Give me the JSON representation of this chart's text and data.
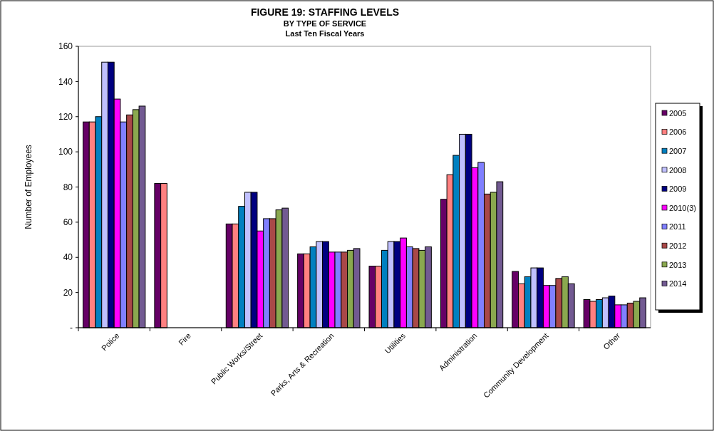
{
  "chart_data": {
    "type": "bar",
    "title": "FIGURE 19: STAFFING LEVELS",
    "subtitle": "BY TYPE OF SERVICE\nLast Ten Fiscal Years",
    "ylabel": "Number of Employees",
    "categories": [
      "Police",
      "Fire",
      "Public Works/Street",
      "Parks, Arts & Recreation",
      "Utilities",
      "Administration",
      "Community Development",
      "Other"
    ],
    "ylim": [
      0,
      160
    ],
    "yticks": [
      {
        "value": 0,
        "label": "-"
      },
      20,
      40,
      60,
      80,
      100,
      120,
      140,
      160
    ],
    "grid": false,
    "legend": "right",
    "series": [
      {
        "name": "2005",
        "color": "#660066",
        "values": [
          117,
          82,
          59,
          42,
          35,
          73,
          32,
          16
        ]
      },
      {
        "name": "2006",
        "color": "#ff8080",
        "values": [
          117,
          82,
          59,
          42,
          35,
          87,
          25,
          15
        ]
      },
      {
        "name": "2007",
        "color": "#0080c0",
        "values": [
          120,
          null,
          69,
          46,
          44,
          98,
          29,
          16
        ]
      },
      {
        "name": "2008",
        "color": "#c0c0ff",
        "values": [
          151,
          null,
          77,
          49,
          49,
          110,
          34,
          17
        ]
      },
      {
        "name": "2009",
        "color": "#000080",
        "values": [
          151,
          null,
          77,
          49,
          49,
          110,
          34,
          18
        ]
      },
      {
        "name": "2010(3)",
        "color": "#ff00ff",
        "values": [
          130,
          null,
          55,
          43,
          51,
          91,
          24,
          13
        ]
      },
      {
        "name": "2011",
        "color": "#8080ff",
        "values": [
          117,
          null,
          62,
          43,
          46,
          94,
          24,
          13
        ]
      },
      {
        "name": "2012",
        "color": "#a94848",
        "values": [
          121,
          null,
          62,
          43,
          45,
          76,
          28,
          14
        ]
      },
      {
        "name": "2013",
        "color": "#8aa84f",
        "values": [
          124,
          null,
          67,
          44,
          44,
          77,
          29,
          15
        ]
      },
      {
        "name": "2014",
        "color": "#725a92",
        "values": [
          126,
          null,
          68,
          45,
          46,
          83,
          25,
          17
        ]
      }
    ]
  }
}
